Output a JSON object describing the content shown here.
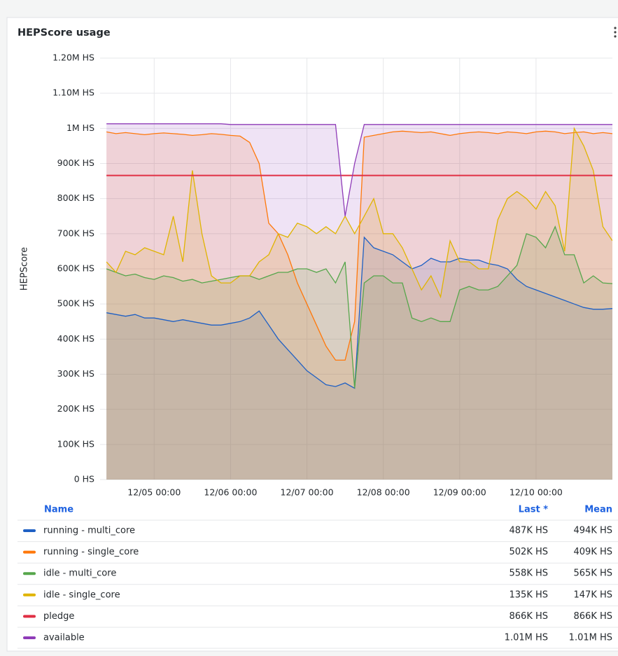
{
  "chart_data": {
    "type": "line",
    "title": "HEPScore usage",
    "y_label": "HEPScore",
    "x": [
      "12/04 09:00",
      "12/04 12:00",
      "12/04 15:00",
      "12/04 18:00",
      "12/04 21:00",
      "12/05 00:00",
      "12/05 03:00",
      "12/05 06:00",
      "12/05 09:00",
      "12/05 12:00",
      "12/05 15:00",
      "12/05 18:00",
      "12/05 21:00",
      "12/06 00:00",
      "12/06 03:00",
      "12/06 06:00",
      "12/06 09:00",
      "12/06 12:00",
      "12/06 15:00",
      "12/06 18:00",
      "12/06 21:00",
      "12/07 00:00",
      "12/07 03:00",
      "12/07 06:00",
      "12/07 09:00",
      "12/07 12:00",
      "12/07 15:00",
      "12/07 18:00",
      "12/07 21:00",
      "12/08 00:00",
      "12/08 03:00",
      "12/08 06:00",
      "12/08 09:00",
      "12/08 12:00",
      "12/08 15:00",
      "12/08 18:00",
      "12/08 21:00",
      "12/09 00:00",
      "12/09 03:00",
      "12/09 06:00",
      "12/09 09:00",
      "12/09 12:00",
      "12/09 15:00",
      "12/09 18:00",
      "12/09 21:00",
      "12/10 00:00",
      "12/10 03:00",
      "12/10 06:00",
      "12/10 09:00",
      "12/10 12:00",
      "12/10 15:00",
      "12/10 18:00",
      "12/10 21:00",
      "12/11 00:00"
    ],
    "xlim": [
      "12/04 07:00",
      "12/11 00:00"
    ],
    "xticks": [
      "12/05 00:00",
      "12/06 00:00",
      "12/07 00:00",
      "12/08 00:00",
      "12/09 00:00",
      "12/10 00:00"
    ],
    "ylim": [
      0,
      1200000
    ],
    "yticks": [
      {
        "value": 0,
        "label": "0 HS"
      },
      {
        "value": 100000,
        "label": "100K HS"
      },
      {
        "value": 200000,
        "label": "200K HS"
      },
      {
        "value": 300000,
        "label": "300K HS"
      },
      {
        "value": 400000,
        "label": "400K HS"
      },
      {
        "value": 500000,
        "label": "500K HS"
      },
      {
        "value": 600000,
        "label": "600K HS"
      },
      {
        "value": 700000,
        "label": "700K HS"
      },
      {
        "value": 800000,
        "label": "800K HS"
      },
      {
        "value": 900000,
        "label": "900K HS"
      },
      {
        "value": 1000000,
        "label": "1M HS"
      },
      {
        "value": 1100000,
        "label": "1.10M HS"
      },
      {
        "value": 1200000,
        "label": "1.20M HS"
      }
    ],
    "grid": true,
    "legend_columns": [
      "Name",
      "Last *",
      "Mean"
    ],
    "series": [
      {
        "name": "running - multi_core",
        "color": "#1f60c4",
        "last": "487K HS",
        "mean": "494K HS",
        "values": [
          475000,
          470000,
          465000,
          470000,
          460000,
          460000,
          455000,
          450000,
          455000,
          450000,
          445000,
          440000,
          440000,
          445000,
          450000,
          460000,
          480000,
          440000,
          400000,
          370000,
          340000,
          310000,
          290000,
          270000,
          265000,
          275000,
          260000,
          690000,
          660000,
          650000,
          640000,
          620000,
          600000,
          610000,
          630000,
          620000,
          620000,
          630000,
          625000,
          625000,
          615000,
          610000,
          600000,
          570000,
          550000,
          540000,
          530000,
          520000,
          510000,
          500000,
          490000,
          485000,
          485000,
          487000
        ]
      },
      {
        "name": "running - single_core",
        "color": "#ff780a",
        "last": "502K HS",
        "mean": "409K HS",
        "values": [
          990000,
          985000,
          988000,
          985000,
          982000,
          985000,
          987000,
          985000,
          983000,
          980000,
          982000,
          985000,
          983000,
          980000,
          978000,
          960000,
          900000,
          730000,
          700000,
          640000,
          560000,
          500000,
          440000,
          380000,
          340000,
          340000,
          450000,
          975000,
          980000,
          985000,
          990000,
          992000,
          990000,
          988000,
          990000,
          985000,
          980000,
          985000,
          988000,
          990000,
          988000,
          985000,
          990000,
          988000,
          985000,
          990000,
          992000,
          990000,
          985000,
          988000,
          990000,
          985000,
          988000,
          985000
        ]
      },
      {
        "name": "idle - multi_core",
        "color": "#56a64b",
        "last": "558K HS",
        "mean": "565K HS",
        "values": [
          600000,
          590000,
          580000,
          585000,
          575000,
          570000,
          580000,
          575000,
          565000,
          570000,
          560000,
          565000,
          570000,
          575000,
          580000,
          580000,
          570000,
          580000,
          590000,
          590000,
          600000,
          600000,
          590000,
          600000,
          560000,
          620000,
          260000,
          560000,
          580000,
          580000,
          560000,
          560000,
          460000,
          450000,
          460000,
          450000,
          450000,
          540000,
          550000,
          540000,
          540000,
          550000,
          580000,
          610000,
          700000,
          690000,
          660000,
          720000,
          640000,
          640000,
          560000,
          580000,
          560000,
          558000
        ]
      },
      {
        "name": "idle - single_core",
        "color": "#e0b400",
        "last": "135K HS",
        "mean": "147K HS",
        "values": [
          620000,
          590000,
          650000,
          640000,
          660000,
          650000,
          640000,
          750000,
          620000,
          880000,
          700000,
          580000,
          560000,
          560000,
          580000,
          580000,
          620000,
          640000,
          700000,
          690000,
          730000,
          720000,
          700000,
          720000,
          700000,
          750000,
          700000,
          750000,
          800000,
          700000,
          700000,
          660000,
          600000,
          540000,
          580000,
          520000,
          680000,
          620000,
          620000,
          600000,
          600000,
          740000,
          800000,
          820000,
          800000,
          770000,
          820000,
          780000,
          650000,
          1000000,
          950000,
          880000,
          720000,
          680000
        ]
      },
      {
        "name": "pledge",
        "color": "#e02f44",
        "last": "866K HS",
        "mean": "866K HS",
        "values": [
          866000,
          866000,
          866000,
          866000,
          866000,
          866000,
          866000,
          866000,
          866000,
          866000,
          866000,
          866000,
          866000,
          866000,
          866000,
          866000,
          866000,
          866000,
          866000,
          866000,
          866000,
          866000,
          866000,
          866000,
          866000,
          866000,
          866000,
          866000,
          866000,
          866000,
          866000,
          866000,
          866000,
          866000,
          866000,
          866000,
          866000,
          866000,
          866000,
          866000,
          866000,
          866000,
          866000,
          866000,
          866000,
          866000,
          866000,
          866000,
          866000,
          866000,
          866000,
          866000,
          866000,
          866000
        ]
      },
      {
        "name": "available",
        "color": "#8f3bb8",
        "last": "1.01M HS",
        "mean": "1.01M HS",
        "values": [
          1013000,
          1013000,
          1013000,
          1013000,
          1013000,
          1013000,
          1013000,
          1013000,
          1013000,
          1013000,
          1013000,
          1013000,
          1013000,
          1011000,
          1011000,
          1011000,
          1011000,
          1011000,
          1011000,
          1011000,
          1011000,
          1011000,
          1011000,
          1011000,
          1011000,
          750000,
          900000,
          1011000,
          1011000,
          1011000,
          1011000,
          1011000,
          1011000,
          1011000,
          1011000,
          1011000,
          1011000,
          1011000,
          1011000,
          1011000,
          1011000,
          1011000,
          1011000,
          1011000,
          1011000,
          1011000,
          1011000,
          1011000,
          1011000,
          1011000,
          1011000,
          1011000,
          1011000,
          1011000
        ]
      }
    ]
  }
}
